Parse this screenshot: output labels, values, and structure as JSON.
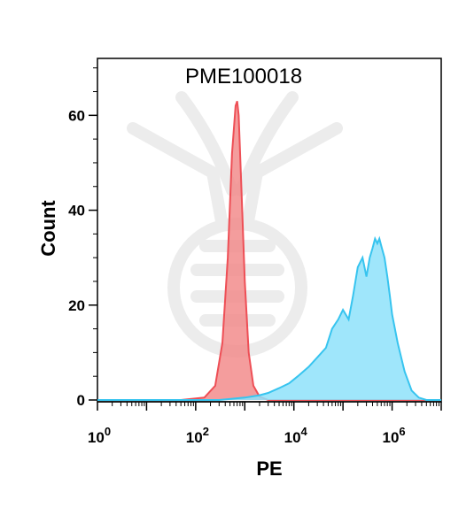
{
  "chart_data": {
    "type": "area",
    "title": "PME100018",
    "xlabel": "PE",
    "ylabel": "Count",
    "x_scale": "log10",
    "xlim": [
      1,
      10000000
    ],
    "ylim": [
      0,
      72
    ],
    "x_ticks": [
      {
        "value": 1,
        "base": "10",
        "exp": "0"
      },
      {
        "value": 100,
        "base": "10",
        "exp": "2"
      },
      {
        "value": 10000,
        "base": "10",
        "exp": "4"
      },
      {
        "value": 1000000,
        "base": "10",
        "exp": "6"
      }
    ],
    "y_ticks": [
      {
        "value": 0,
        "label": "0"
      },
      {
        "value": 20,
        "label": "20"
      },
      {
        "value": 40,
        "label": "40"
      },
      {
        "value": 60,
        "label": "60"
      }
    ],
    "grid": false,
    "legend": "none",
    "series": [
      {
        "color_fill": "#f28c8c",
        "color_line": "#ee4f56",
        "x": [
          1,
          50,
          150,
          250,
          350,
          450,
          550,
          650,
          700,
          750,
          850,
          1000,
          1200,
          1500,
          2000,
          3000,
          10000000
        ],
        "y": [
          0,
          0,
          0.5,
          3,
          12,
          30,
          52,
          62,
          63,
          60,
          45,
          25,
          10,
          3,
          0.7,
          0,
          0
        ]
      },
      {
        "color_fill": "#8ee2fa",
        "color_line": "#37c4ef",
        "x": [
          1,
          300,
          1000,
          2000,
          3000,
          5000,
          8000,
          12000,
          20000,
          30000,
          45000,
          60000,
          80000,
          100000,
          130000,
          160000,
          200000,
          250000,
          300000,
          350000,
          400000,
          450000,
          500000,
          550000,
          600000,
          700000,
          800000,
          900000,
          1000000,
          1300000,
          1800000,
          2500000,
          3500000,
          5000000,
          10000000
        ],
        "y": [
          0,
          0,
          0.5,
          1,
          1.5,
          2.5,
          3.5,
          5,
          7,
          9,
          11,
          15,
          17,
          19,
          17,
          22,
          28,
          30,
          26,
          30,
          32,
          34,
          33,
          34,
          32.5,
          30,
          26,
          22,
          18,
          12,
          6,
          2,
          0.5,
          0,
          0
        ]
      }
    ]
  }
}
